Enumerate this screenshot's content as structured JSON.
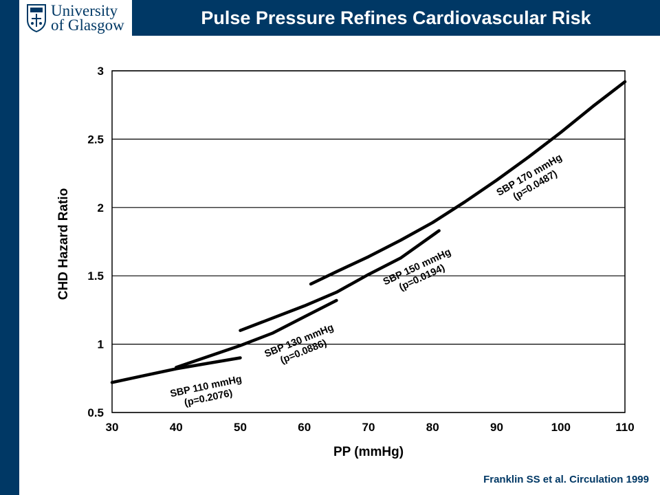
{
  "header": {
    "logo_line1": "University",
    "logo_line2": "of Glasgow",
    "title": "Pulse Pressure Refines Cardiovascular Risk"
  },
  "citation": "Franklin SS et al. Circulation 1999",
  "colors": {
    "brand": "#003865",
    "curve": "#000000"
  },
  "chart_data": {
    "type": "line",
    "title": "",
    "xlabel": "PP (mmHg)",
    "ylabel": "CHD Hazard Ratio",
    "xlim": [
      30,
      110
    ],
    "ylim": [
      0.5,
      3
    ],
    "xticks": [
      30,
      40,
      50,
      60,
      70,
      80,
      90,
      100,
      110
    ],
    "yticks": [
      0.5,
      1,
      1.5,
      2,
      2.5,
      3
    ],
    "ytick_labels": [
      "0.5",
      "1",
      "1.5",
      "2",
      "2.5",
      "3"
    ],
    "grid": "horizontal",
    "series": [
      {
        "name": "SBP 110 mmHg",
        "pvalue": "(p=0.2076)",
        "x": [
          30,
          35,
          40,
          45,
          50
        ],
        "y": [
          0.72,
          0.77,
          0.82,
          0.86,
          0.9
        ]
      },
      {
        "name": "SBP 130 mmHg",
        "pvalue": "(p=0.0886)",
        "x": [
          40,
          45,
          50,
          55,
          60,
          65
        ],
        "y": [
          0.83,
          0.91,
          0.99,
          1.08,
          1.2,
          1.32
        ]
      },
      {
        "name": "SBP 150 mmHg",
        "pvalue": "(p=0.0194)",
        "x": [
          50,
          55,
          60,
          65,
          70,
          75,
          81
        ],
        "y": [
          1.1,
          1.19,
          1.28,
          1.38,
          1.51,
          1.63,
          1.83
        ]
      },
      {
        "name": "SBP 170 mmHg",
        "pvalue": "(p=0.0487)",
        "x": [
          61,
          65,
          70,
          75,
          80,
          85,
          90,
          95,
          100,
          105,
          110
        ],
        "y": [
          1.44,
          1.53,
          1.64,
          1.76,
          1.89,
          2.04,
          2.2,
          2.37,
          2.55,
          2.74,
          2.92
        ]
      }
    ]
  }
}
